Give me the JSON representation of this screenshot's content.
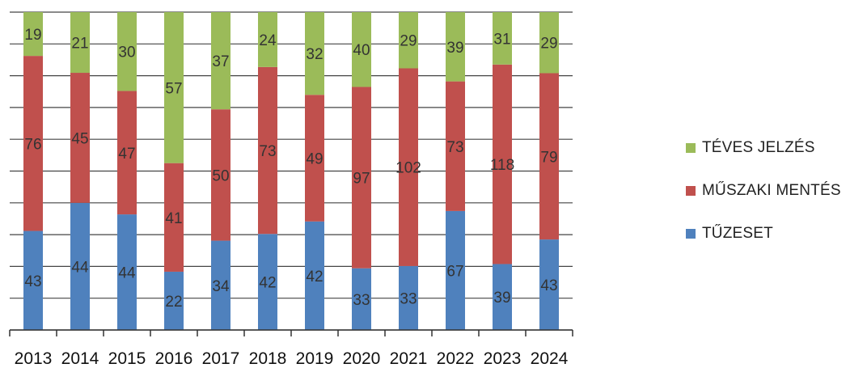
{
  "chart_data": {
    "type": "bar",
    "stacked": true,
    "percent_stacked": true,
    "categories": [
      "2013",
      "2014",
      "2015",
      "2016",
      "2017",
      "2018",
      "2019",
      "2020",
      "2021",
      "2022",
      "2023",
      "2024"
    ],
    "series": [
      {
        "name": "TŰZESET",
        "color": "#4f81bd",
        "values": [
          43,
          44,
          44,
          22,
          34,
          42,
          42,
          33,
          33,
          67,
          39,
          43
        ]
      },
      {
        "name": "MŰSZAKI MENTÉS",
        "color": "#c0504d",
        "values": [
          76,
          45,
          47,
          41,
          50,
          73,
          49,
          97,
          102,
          73,
          118,
          79
        ]
      },
      {
        "name": "TÉVES JELZÉS",
        "color": "#9bbb59",
        "values": [
          19,
          21,
          30,
          57,
          37,
          24,
          32,
          40,
          29,
          39,
          31,
          29
        ]
      }
    ],
    "legend_position": "right",
    "legend_order": [
      "TÉVES JELZÉS",
      "MŰSZAKI MENTÉS",
      "TŰZESET"
    ],
    "grid": true,
    "data_labels": true
  }
}
